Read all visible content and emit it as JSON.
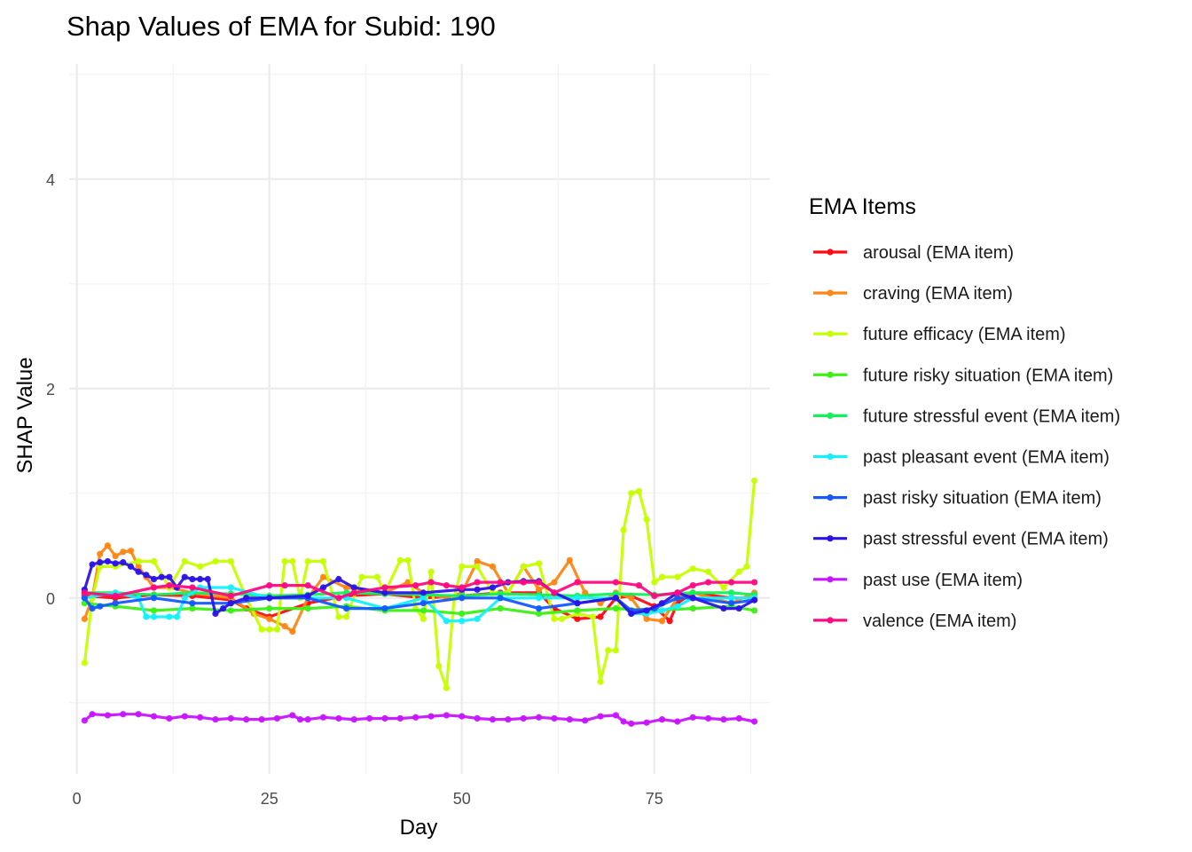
{
  "chart_data": {
    "type": "line",
    "title": "Shap Values of EMA for Subid: 190",
    "xlabel": "Day",
    "ylabel": "SHAP Value",
    "xlim": [
      -1,
      90
    ],
    "ylim": [
      -1.68,
      5.1
    ],
    "x_ticks": [
      0,
      25,
      50,
      75
    ],
    "y_ticks": [
      0,
      2,
      4
    ],
    "grid": true,
    "legend_title": "EMA Items",
    "legend_position": "right",
    "series": [
      {
        "name": "arousal (EMA item)",
        "color": "#ff0a14",
        "x": [
          1,
          5,
          10,
          15,
          20,
          22,
          25,
          30,
          35,
          40,
          45,
          50,
          55,
          60,
          62,
          65,
          68,
          70,
          72,
          75,
          77,
          78,
          80,
          85,
          88
        ],
        "y": [
          0.02,
          0.0,
          0.03,
          0.02,
          -0.02,
          -0.1,
          -0.18,
          -0.05,
          0.02,
          0.04,
          0.0,
          0.02,
          0.05,
          0.05,
          -0.1,
          -0.2,
          -0.18,
          0.0,
          0.02,
          -0.08,
          -0.22,
          -0.05,
          0.05,
          0.0,
          0.0
        ]
      },
      {
        "name": "craving (EMA item)",
        "color": "#ff8614",
        "x": [
          1,
          2,
          3,
          4,
          5,
          6,
          7,
          8,
          9,
          10,
          12,
          15,
          20,
          23,
          25,
          27,
          28,
          30,
          32,
          35,
          40,
          43,
          45,
          48,
          50,
          52,
          54,
          56,
          58,
          60,
          62,
          64,
          66,
          68,
          70,
          72,
          74,
          76,
          78,
          80,
          85,
          88
        ],
        "y": [
          -0.2,
          0.0,
          0.42,
          0.5,
          0.4,
          0.44,
          0.45,
          0.3,
          0.2,
          0.1,
          0.1,
          0.05,
          0.0,
          -0.15,
          -0.2,
          -0.27,
          -0.32,
          0.0,
          0.2,
          0.1,
          0.05,
          0.15,
          0.05,
          0.0,
          0.05,
          0.35,
          0.3,
          0.05,
          0.3,
          0.08,
          0.15,
          0.36,
          0.05,
          -0.05,
          0.05,
          0.0,
          -0.2,
          -0.22,
          0.0,
          0.05,
          -0.05,
          0.05
        ]
      },
      {
        "name": "future efficacy (EMA item)",
        "color": "#c6ff00",
        "x": [
          1,
          2,
          3,
          5,
          8,
          10,
          12,
          14,
          16,
          18,
          20,
          22,
          24,
          25,
          26,
          27,
          28,
          29,
          30,
          32,
          34,
          35,
          37,
          39,
          40,
          42,
          43,
          44,
          45,
          46,
          47,
          48,
          49,
          50,
          52,
          54,
          56,
          58,
          60,
          62,
          63,
          65,
          67,
          68,
          69,
          70,
          71,
          72,
          73,
          74,
          75,
          76,
          78,
          80,
          82,
          84,
          86,
          87,
          88
        ],
        "y": [
          -0.62,
          0.0,
          0.3,
          0.3,
          0.35,
          0.35,
          0.1,
          0.35,
          0.3,
          0.35,
          0.35,
          0.0,
          -0.3,
          -0.3,
          -0.3,
          0.35,
          0.35,
          0.0,
          0.35,
          0.35,
          -0.18,
          -0.18,
          0.2,
          0.2,
          0.05,
          0.36,
          0.36,
          -0.1,
          -0.2,
          0.25,
          -0.65,
          -0.86,
          0.0,
          0.3,
          0.3,
          0.05,
          0.05,
          0.3,
          0.33,
          -0.2,
          -0.2,
          -0.15,
          -0.18,
          -0.8,
          -0.5,
          -0.5,
          0.65,
          1.0,
          1.02,
          0.75,
          0.15,
          0.2,
          0.2,
          0.28,
          0.25,
          0.1,
          0.25,
          0.3,
          1.12
        ]
      },
      {
        "name": "future risky situation (EMA item)",
        "color": "#3cf014",
        "x": [
          1,
          5,
          10,
          15,
          20,
          25,
          30,
          35,
          40,
          45,
          50,
          55,
          60,
          65,
          70,
          75,
          80,
          85,
          88
        ],
        "y": [
          -0.05,
          -0.08,
          -0.12,
          -0.1,
          -0.12,
          -0.1,
          -0.1,
          -0.08,
          -0.12,
          -0.12,
          -0.15,
          -0.1,
          -0.15,
          -0.12,
          -0.1,
          -0.12,
          -0.1,
          -0.08,
          -0.12
        ]
      },
      {
        "name": "future stressful event (EMA item)",
        "color": "#14f05a",
        "x": [
          1,
          5,
          10,
          15,
          20,
          25,
          30,
          35,
          40,
          45,
          50,
          55,
          60,
          65,
          70,
          75,
          80,
          85,
          88
        ],
        "y": [
          0.05,
          0.05,
          0.03,
          0.05,
          0.04,
          0.02,
          0.03,
          0.05,
          0.04,
          0.03,
          0.02,
          0.04,
          0.03,
          0.02,
          0.04,
          0.03,
          0.05,
          0.05,
          0.03
        ]
      },
      {
        "name": "past pleasant event (EMA item)",
        "color": "#14f0ff",
        "x": [
          1,
          5,
          8,
          9,
          10,
          12,
          13,
          14,
          16,
          20,
          25,
          30,
          35,
          40,
          45,
          48,
          50,
          52,
          55,
          60,
          65,
          70,
          72,
          74,
          76,
          78,
          80,
          85,
          88
        ],
        "y": [
          0.0,
          0.05,
          0.0,
          -0.18,
          -0.18,
          -0.18,
          -0.18,
          0.0,
          0.1,
          0.1,
          0.0,
          0.0,
          0.0,
          -0.1,
          0.0,
          -0.22,
          -0.22,
          -0.2,
          0.0,
          0.0,
          0.0,
          0.0,
          -0.15,
          -0.15,
          -0.12,
          -0.08,
          0.0,
          0.0,
          0.0
        ]
      },
      {
        "name": "past risky situation (EMA item)",
        "color": "#145aff",
        "x": [
          1,
          2,
          3,
          5,
          10,
          15,
          20,
          25,
          30,
          35,
          40,
          45,
          50,
          55,
          60,
          65,
          70,
          72,
          75,
          78,
          80,
          85,
          88
        ],
        "y": [
          0.0,
          -0.1,
          -0.08,
          -0.05,
          0.0,
          -0.05,
          -0.05,
          0.0,
          0.0,
          -0.1,
          -0.1,
          -0.05,
          0.0,
          0.0,
          -0.1,
          -0.05,
          0.0,
          -0.12,
          -0.1,
          0.0,
          0.0,
          -0.05,
          -0.02
        ]
      },
      {
        "name": "past stressful event (EMA item)",
        "color": "#2c14e8",
        "x": [
          1,
          2,
          3,
          4,
          5,
          6,
          7,
          8,
          9,
          10,
          11,
          12,
          13,
          14,
          15,
          16,
          17,
          18,
          19,
          20,
          22,
          25,
          30,
          32,
          34,
          36,
          40,
          45,
          50,
          52,
          54,
          56,
          58,
          60,
          62,
          65,
          70,
          72,
          74,
          76,
          78,
          80,
          84,
          86,
          88
        ],
        "y": [
          0.08,
          0.32,
          0.34,
          0.35,
          0.33,
          0.34,
          0.3,
          0.25,
          0.22,
          0.18,
          0.2,
          0.2,
          0.1,
          0.2,
          0.18,
          0.18,
          0.18,
          -0.15,
          -0.1,
          -0.05,
          0.0,
          0.0,
          0.02,
          0.1,
          0.18,
          0.1,
          0.05,
          0.05,
          0.08,
          0.08,
          0.1,
          0.15,
          0.16,
          0.16,
          0.05,
          -0.05,
          0.0,
          -0.15,
          -0.12,
          -0.05,
          0.05,
          0.0,
          -0.1,
          -0.1,
          -0.02
        ]
      },
      {
        "name": "past use (EMA item)",
        "color": "#c814ff",
        "x": [
          1,
          2,
          4,
          6,
          8,
          10,
          12,
          14,
          16,
          18,
          20,
          22,
          24,
          26,
          28,
          29,
          30,
          32,
          34,
          36,
          38,
          40,
          42,
          44,
          46,
          48,
          50,
          52,
          54,
          56,
          58,
          60,
          62,
          64,
          66,
          68,
          70,
          71,
          72,
          74,
          76,
          78,
          80,
          82,
          84,
          86,
          88
        ],
        "y": [
          -1.17,
          -1.11,
          -1.12,
          -1.11,
          -1.11,
          -1.13,
          -1.15,
          -1.13,
          -1.14,
          -1.16,
          -1.15,
          -1.16,
          -1.16,
          -1.15,
          -1.12,
          -1.16,
          -1.16,
          -1.14,
          -1.15,
          -1.16,
          -1.15,
          -1.15,
          -1.15,
          -1.14,
          -1.13,
          -1.12,
          -1.13,
          -1.15,
          -1.16,
          -1.16,
          -1.15,
          -1.14,
          -1.15,
          -1.16,
          -1.17,
          -1.13,
          -1.12,
          -1.18,
          -1.2,
          -1.19,
          -1.16,
          -1.18,
          -1.14,
          -1.15,
          -1.16,
          -1.15,
          -1.18
        ]
      },
      {
        "name": "valence (EMA item)",
        "color": "#ff0a82",
        "x": [
          1,
          5,
          10,
          12,
          15,
          20,
          25,
          27,
          30,
          34,
          36,
          40,
          44,
          46,
          48,
          50,
          52,
          55,
          58,
          60,
          62,
          65,
          70,
          73,
          75,
          78,
          80,
          82,
          85,
          88
        ],
        "y": [
          0.05,
          0.02,
          0.1,
          0.12,
          0.1,
          0.02,
          0.12,
          0.12,
          0.12,
          0.0,
          0.05,
          0.1,
          0.12,
          0.15,
          0.12,
          0.1,
          0.15,
          0.15,
          0.15,
          0.15,
          0.05,
          0.15,
          0.15,
          0.12,
          0.02,
          0.05,
          0.12,
          0.15,
          0.15,
          0.15
        ]
      }
    ]
  }
}
